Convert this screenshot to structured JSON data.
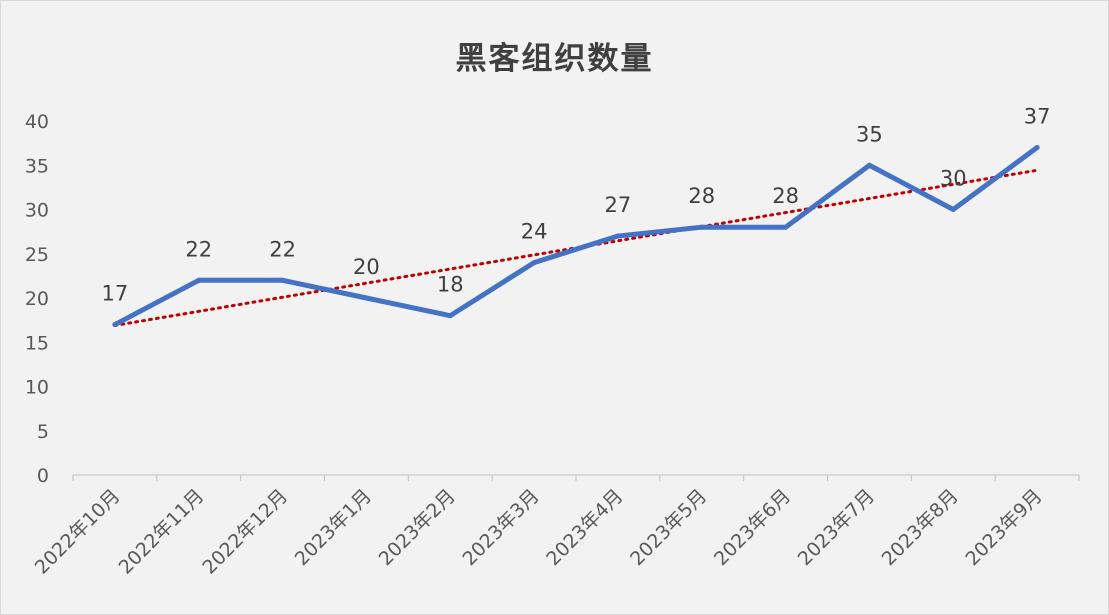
{
  "chart_data": {
    "type": "line",
    "title": "黑客组织数量",
    "categories": [
      "2022年10月",
      "2022年11月",
      "2022年12月",
      "2023年1月",
      "2023年2月",
      "2023年3月",
      "2023年4月",
      "2023年5月",
      "2023年6月",
      "2023年7月",
      "2023年8月",
      "2023年9月"
    ],
    "series": [
      {
        "values": [
          17,
          22,
          22,
          20,
          18,
          24,
          27,
          28,
          28,
          35,
          30,
          37
        ]
      }
    ],
    "trendline": {
      "type": "linear",
      "style": "dotted"
    },
    "ylim": [
      0,
      40
    ],
    "yticks": [
      0,
      5,
      10,
      15,
      20,
      25,
      30,
      35,
      40
    ],
    "xlabel": "",
    "ylabel": "",
    "grid": false,
    "data_labels": true,
    "colors": {
      "line": "#4472c4",
      "trend": "#c00000",
      "background": "#f2f2f2",
      "axis": "#bfbfbf"
    }
  }
}
